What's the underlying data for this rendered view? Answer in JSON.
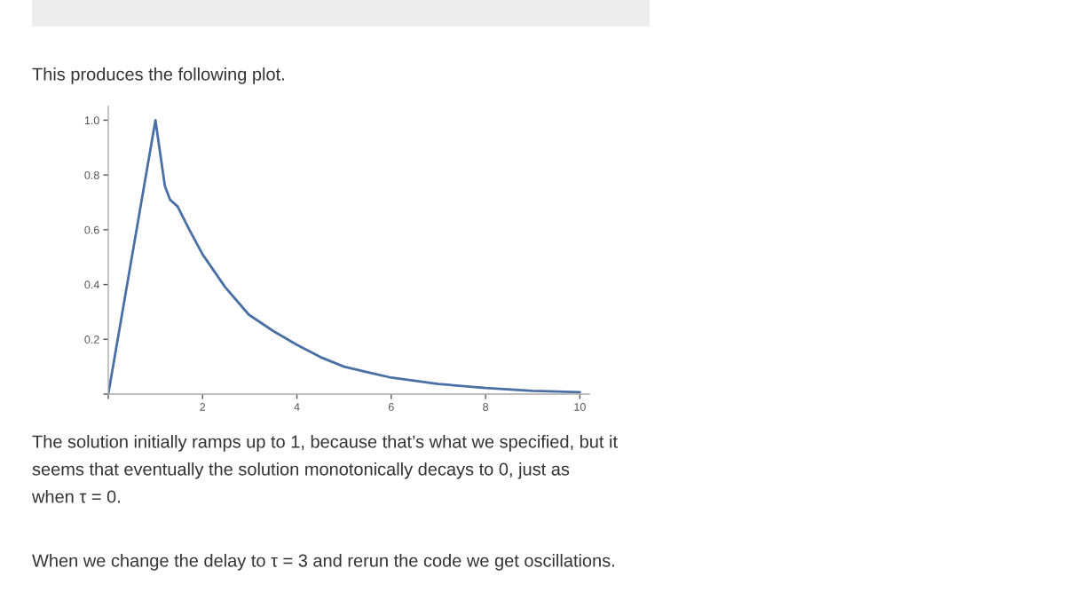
{
  "chart_data": {
    "type": "line",
    "x": [
      0,
      1,
      1.1,
      1.2,
      1.31,
      1.47,
      1.72,
      2.0,
      2.48,
      2.98,
      3.5,
      4.0,
      4.5,
      5.0,
      5.5,
      6.0,
      7.0,
      8.0,
      9.0,
      10.0
    ],
    "series": [
      {
        "color": "#4a6fa5",
        "values": [
          0,
          1.0,
          0.88,
          0.76,
          0.71,
          0.685,
          0.6,
          0.51,
          0.39,
          0.29,
          0.23,
          0.18,
          0.135,
          0.1,
          0.08,
          0.06,
          0.037,
          0.022,
          0.012,
          0.007
        ]
      }
    ],
    "xlim": [
      0,
      10.2
    ],
    "ylim": [
      0,
      1.05
    ],
    "xticks": [
      {
        "value": 0,
        "label": null
      },
      2,
      4,
      6,
      8,
      10
    ],
    "yticks": [
      {
        "value": 0,
        "label": null
      },
      0.2,
      0.4,
      0.6,
      0.8,
      {
        "value": 1,
        "label": "1.0"
      }
    ],
    "grid": false,
    "legend": false,
    "marker": "none",
    "line_style": "solid",
    "annotations": [
      "This produces the following plot.",
      "The solution initially ramps up to 1, because that’s what we specified, but it\nseems that eventually the solution monotonically decays to 0, just as\nwhen τ = 0.",
      "When we change the delay to τ = 3 and rerun the code we get oscillations."
    ]
  }
}
